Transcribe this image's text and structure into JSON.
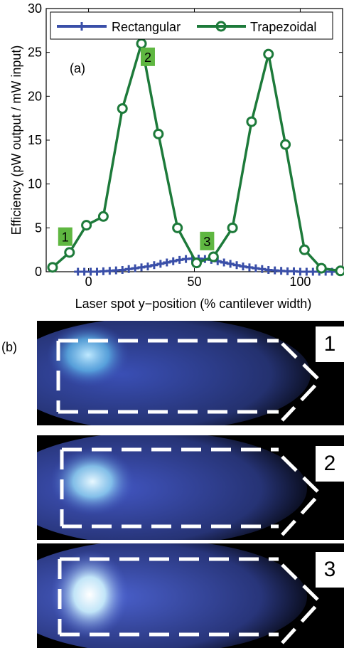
{
  "chart_data": {
    "type": "line",
    "panel_label": "(a)",
    "xlabel": "Laser spot y−position (% cantilever width)",
    "ylabel": "Efficiency (pW output / mW input)",
    "xlim": [
      -20,
      120
    ],
    "ylim": [
      0,
      30
    ],
    "xticks": [
      0,
      50,
      100
    ],
    "yticks": [
      0,
      5,
      10,
      15,
      20,
      25,
      30
    ],
    "grid": false,
    "legend_position": "top",
    "series": [
      {
        "name": "Rectangular",
        "color": "#3a4fa8",
        "marker": "plus",
        "x": [
          -5,
          -2,
          1,
          4,
          7,
          10,
          13,
          16,
          19,
          22,
          25,
          28,
          31,
          34,
          37,
          40,
          43,
          46,
          49,
          52,
          55,
          58,
          61,
          64,
          67,
          70,
          73,
          76,
          79,
          82,
          85,
          88,
          91,
          94,
          97,
          100,
          103,
          106,
          109,
          112,
          115
        ],
        "y": [
          0.0,
          0.0,
          0.0,
          0.0,
          0.05,
          0.1,
          0.15,
          0.2,
          0.3,
          0.4,
          0.5,
          0.6,
          0.75,
          0.9,
          1.05,
          1.2,
          1.35,
          1.45,
          1.5,
          1.5,
          1.45,
          1.35,
          1.2,
          1.05,
          0.9,
          0.75,
          0.6,
          0.5,
          0.4,
          0.3,
          0.2,
          0.15,
          0.1,
          0.05,
          0.05,
          0.0,
          0.0,
          0.0,
          0.0,
          0.0,
          0.0
        ]
      },
      {
        "name": "Trapezoidal",
        "color": "#1d7a3a",
        "marker": "circle",
        "x": [
          -17,
          -9,
          -1,
          7,
          16,
          25,
          33,
          42,
          51,
          59,
          68,
          77,
          85,
          93,
          102,
          110,
          119
        ],
        "y": [
          0.5,
          2.2,
          5.3,
          6.3,
          18.6,
          26.0,
          15.7,
          5.0,
          1.0,
          1.7,
          5.0,
          17.1,
          24.8,
          14.5,
          2.5,
          0.4,
          0.1
        ]
      }
    ],
    "annotations": [
      {
        "text": "1",
        "x": -11,
        "y": 4.0
      },
      {
        "text": "2",
        "x": 28,
        "y": 24.5
      },
      {
        "text": "3",
        "x": 56,
        "y": 3.5
      }
    ]
  },
  "figure_b": {
    "label": "(b)",
    "panels": [
      {
        "number": "1",
        "spot_position": "top-left",
        "intensity": 0.55
      },
      {
        "number": "2",
        "spot_position": "left",
        "intensity": 0.75
      },
      {
        "number": "3",
        "spot_position": "left",
        "intensity": 1.0
      }
    ]
  }
}
